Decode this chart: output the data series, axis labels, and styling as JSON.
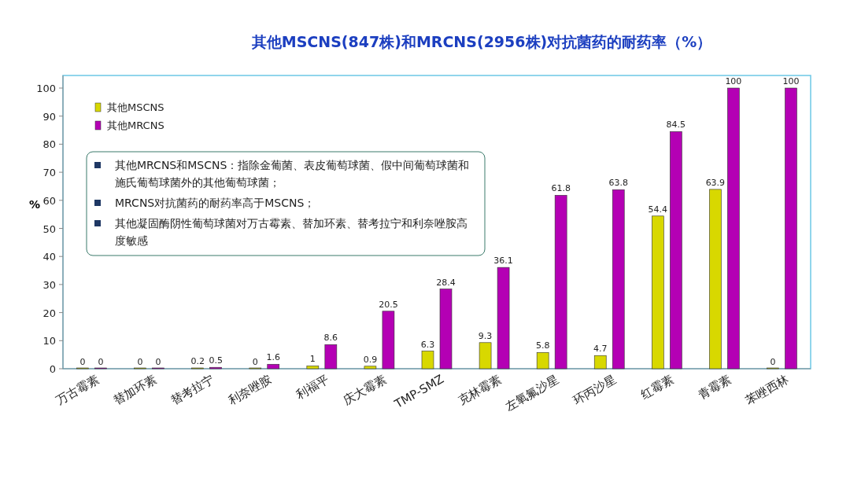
{
  "chart_data": {
    "type": "bar",
    "title": "其他MSCNS(847株)和MRCNS(2956株)对抗菌药的耐药率（%）",
    "ylabel": "%",
    "categories": [
      "万古霉素",
      "替加环素",
      "替考拉宁",
      "利奈唑胺",
      "利福平",
      "庆大霉素",
      "TMP-SMZ",
      "克林霉素",
      "左氧氟沙星",
      "环丙沙星",
      "红霉素",
      "青霉素",
      "苯唑西林"
    ],
    "series": [
      {
        "name": "其他MSCNS",
        "color": "#d8d800",
        "values": [
          0,
          0,
          0.2,
          0,
          1,
          0.9,
          6.3,
          9.3,
          5.8,
          4.7,
          54.4,
          63.9,
          0
        ]
      },
      {
        "name": "其他MRCNS",
        "color": "#b400b4",
        "values": [
          0,
          0,
          0.5,
          1.6,
          8.6,
          20.5,
          28.4,
          36.1,
          61.8,
          63.8,
          84.5,
          100,
          100
        ]
      }
    ],
    "ylim": [
      0,
      100
    ],
    "yticks": [
      0,
      10,
      20,
      30,
      40,
      50,
      60,
      70,
      80,
      90,
      100
    ],
    "grid": false,
    "legend": "top left",
    "data_labels": true,
    "annotations": [
      "其他MRCNS和MSCNS：指除金葡菌、表皮葡萄球菌、假中间葡萄球菌和施氏葡萄球菌外的其他葡萄球菌；",
      "MRCNS对抗菌药的耐药率高于MSCNS；",
      "其他凝固酶阴性葡萄球菌对万古霉素、替加环素、替考拉宁和利奈唑胺高度敏感"
    ]
  }
}
